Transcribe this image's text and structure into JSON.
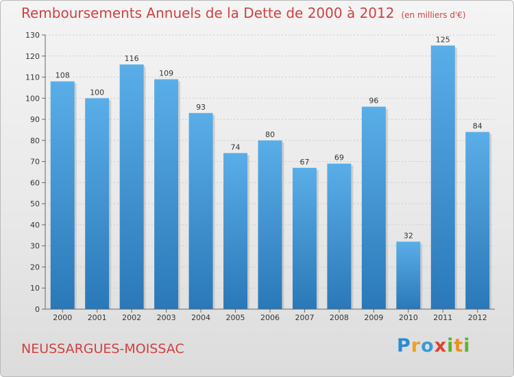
{
  "header": {
    "title": "Remboursements Annuels de la Dette de 2000 à 2012",
    "unit": "(en milliers d'€)"
  },
  "footer": {
    "commune": "NEUSSARGUES-MOISSAC",
    "logo": "Proxiti"
  },
  "colors": {
    "title": "#d04040",
    "bar_top": "#5aaee8",
    "bar_bottom": "#2a78b8"
  },
  "chart_data": {
    "type": "bar",
    "categories": [
      "2000",
      "2001",
      "2002",
      "2003",
      "2004",
      "2005",
      "2006",
      "2007",
      "2008",
      "2009",
      "2010",
      "2011",
      "2012"
    ],
    "values": [
      108,
      100,
      116,
      109,
      93,
      74,
      80,
      67,
      69,
      96,
      32,
      125,
      84
    ],
    "ylim": [
      0,
      130
    ],
    "yticks": [
      0,
      10,
      20,
      30,
      40,
      50,
      60,
      70,
      80,
      90,
      100,
      110,
      120,
      130
    ],
    "grid": true,
    "data_labels": true
  }
}
